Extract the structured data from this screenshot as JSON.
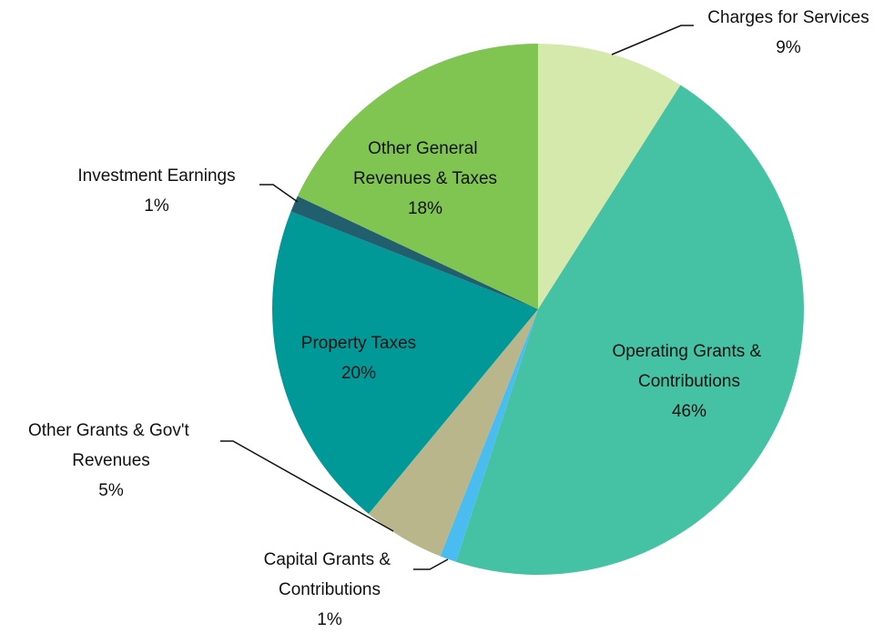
{
  "chart_data": {
    "type": "pie",
    "categories": [
      "Charges for Services",
      "Operating Grants & Contributions",
      "Capital Grants & Contributions",
      "Other Grants & Gov't Revenues",
      "Property Taxes",
      "Investment Earnings",
      "Other General Revenues & Taxes"
    ],
    "values": [
      9,
      46,
      1,
      5,
      20,
      1,
      18
    ],
    "value_labels": [
      "9%",
      "46%",
      "1%",
      "5%",
      "20%",
      "1%",
      "18%"
    ],
    "colors": [
      "#d6e9ad",
      "#45c1a3",
      "#4bbcf0",
      "#b8b68a",
      "#019898",
      "#215e6e",
      "#80c551"
    ]
  }
}
